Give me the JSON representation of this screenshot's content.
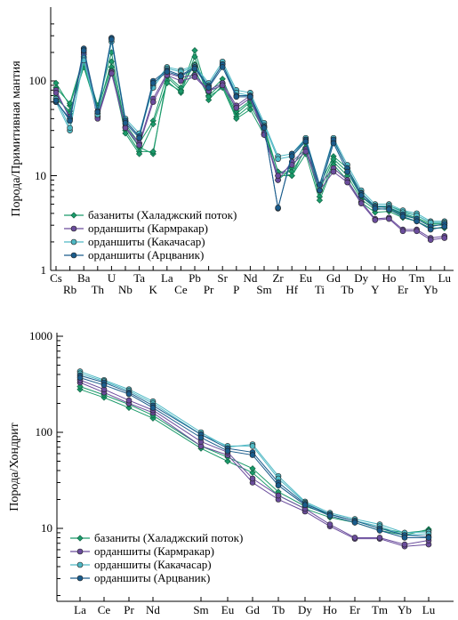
{
  "chart_data": [
    {
      "type": "line",
      "ylabel": "Порода/Примитивная мантия",
      "yscale": "log",
      "ylim": [
        1,
        400
      ],
      "yticks": [
        "1",
        "10",
        "100"
      ],
      "categories": [
        "Cs",
        "Rb",
        "Ba",
        "Th",
        "U",
        "Nb",
        "Ta",
        "K",
        "La",
        "Ce",
        "Pb",
        "Pr",
        "Sr",
        "P",
        "Nd",
        "Sm",
        "Zr",
        "Hf",
        "Eu",
        "Ti",
        "Gd",
        "Tb",
        "Dy",
        "Y",
        "Ho",
        "Er",
        "Tm",
        "Yb",
        "Lu"
      ],
      "legend": [
        "базаниты (Халаджский поток)",
        "орданшиты (Кармракар)",
        "орданшиты (Какачасар)",
        "орданшиты (Арцваник)"
      ],
      "legend_position": "bottom-left",
      "series": [
        {
          "name": "базаниты (Халаджский поток)",
          "color": "#1b9a6a",
          "marker": "diamond",
          "lines": [
            [
              95,
              55,
              165,
              55,
              200,
              32,
              20,
              17,
              110,
              80,
              210,
              70,
              95,
              45,
              60,
              32,
              9,
              12,
              22,
              8,
              16,
              12,
              6,
              4.6,
              4.8,
              4.2,
              3.8,
              3.2,
              3.2
            ],
            [
              65,
              48,
              140,
              48,
              160,
              30,
              18,
              18,
              100,
              75,
              180,
              63,
              90,
              42,
              55,
              30,
              11,
              10,
              20,
              6,
              14,
              10,
              5.6,
              4.4,
              4.5,
              3.8,
              3.5,
              3.0,
              3.0
            ],
            [
              85,
              58,
              180,
              52,
              140,
              35,
              22,
              38,
              115,
              85,
              150,
              75,
              105,
              48,
              62,
              33,
              11,
              11,
              19,
              7,
              15,
              11,
              6,
              4.8,
              4.6,
              4.0,
              3.6,
              3.1,
              3.1
            ],
            [
              70,
              45,
              150,
              45,
              130,
              28,
              17,
              35,
              95,
              78,
              130,
              68,
              85,
              40,
              50,
              27,
              10,
              10,
              17,
              5.5,
              13,
              9,
              5.2,
              4.1,
              4.2,
              3.6,
              3.3,
              2.8,
              2.8
            ]
          ]
        },
        {
          "name": "орданшиты (Кармракар)",
          "color": "#6a4c9c",
          "marker": "circle",
          "lines": [
            [
              80,
              40,
              200,
              42,
              125,
              33,
              22,
              65,
              120,
              110,
              115,
              80,
              95,
              55,
              70,
              28,
              9,
              14,
              19,
              8,
              12,
              9,
              5.3,
              3.5,
              3.6,
              2.7,
              2.7,
              2.2,
              2.3
            ],
            [
              75,
              42,
              190,
              40,
              120,
              32,
              21,
              60,
              115,
              100,
              110,
              78,
              90,
              52,
              66,
              27,
              10,
              13,
              18,
              7,
              11,
              8.5,
              5.1,
              3.4,
              3.5,
              2.6,
              2.6,
              2.1,
              2.2
            ]
          ]
        },
        {
          "name": "орданшиты (Какачасар)",
          "color": "#4fb8c4",
          "marker": "circle",
          "lines": [
            [
              60,
              30,
              175,
              45,
              280,
              40,
              28,
              90,
              140,
              130,
              145,
              95,
              160,
              80,
              75,
              36,
              16,
              17,
              25,
              8,
              25,
              13,
              7,
              5,
              5,
              4.3,
              4,
              3.3,
              3.3
            ],
            [
              65,
              32,
              165,
              44,
              260,
              38,
              26,
              85,
              135,
              125,
              140,
              90,
              150,
              75,
              70,
              34,
              15,
              16,
              24,
              7,
              23,
              12,
              6.6,
              4.8,
              4.8,
              4.1,
              3.8,
              3.2,
              3.2
            ]
          ]
        },
        {
          "name": "орданшиты (Арцваник)",
          "color": "#1a5c8c",
          "marker": "circle",
          "lines": [
            [
              60,
              40,
              220,
              48,
              285,
              38,
              26,
              100,
              130,
              115,
              140,
              88,
              150,
              70,
              70,
              33,
              4.5,
              17,
              24,
              8,
              24,
              12,
              6.5,
              4.7,
              4.6,
              3.9,
              3.5,
              2.9,
              3.1
            ],
            [
              62,
              38,
              210,
              47,
              275,
              36,
              25,
              95,
              125,
              112,
              135,
              85,
              140,
              68,
              68,
              32,
              4.6,
              16,
              23,
              7,
              22,
              11,
              6.2,
              4.5,
              4.4,
              3.7,
              3.3,
              2.7,
              2.9
            ]
          ]
        }
      ]
    },
    {
      "type": "line",
      "ylabel": "Порода/Хондрит",
      "yscale": "log",
      "ylim": [
        2,
        1000
      ],
      "yticks": [
        "10",
        "100",
        "1000"
      ],
      "categories": [
        "La",
        "Ce",
        "Pr",
        "Nd",
        "Sm",
        "Eu",
        "Gd",
        "Tb",
        "Dy",
        "Ho",
        "Er",
        "Tm",
        "Yb",
        "Lu"
      ],
      "legend": [
        "базаниты (Халаджский поток)",
        "орданшиты (Кармракар)",
        "орданшиты (Какачасар)",
        "орданшиты (Арцваник)"
      ],
      "legend_position": "bottom-left",
      "series": [
        {
          "name": "базаниты (Халаджский поток)",
          "color": "#1b9a6a",
          "marker": "diamond",
          "lines": [
            [
              280,
              230,
              180,
              140,
              68,
              50,
              38,
              22,
              16,
              13,
              11.5,
              9.5,
              8.5,
              9.8
            ],
            [
              300,
              245,
              195,
              150,
              72,
              55,
              42,
              24,
              17,
              14,
              12,
              10,
              9,
              9.5
            ]
          ]
        },
        {
          "name": "орданшиты (Кармракар)",
          "color": "#6a4c9c",
          "marker": "circle",
          "lines": [
            [
              330,
              260,
              200,
              160,
              72,
              58,
              30,
              20,
              15,
              10.5,
              7.8,
              7.8,
              6.5,
              6.8
            ],
            [
              350,
              280,
              215,
              170,
              80,
              62,
              33,
              22,
              16,
              11,
              8,
              8,
              6.8,
              7.5
            ]
          ]
        },
        {
          "name": "орданшиты (Какачасар)",
          "color": "#4fb8c4",
          "marker": "circle",
          "lines": [
            [
              430,
              350,
              280,
              210,
              100,
              70,
              75,
              35,
              19,
              14.5,
              12.5,
              11,
              9,
              9.2
            ],
            [
              410,
              340,
              270,
              200,
              95,
              72,
              72,
              33,
              18.5,
              14,
              12,
              10.5,
              8.5,
              8.8
            ]
          ]
        },
        {
          "name": "орданшиты (Арцваник)",
          "color": "#1a5c8c",
          "marker": "circle",
          "lines": [
            [
              390,
              330,
              260,
              190,
              95,
              68,
              62,
              30,
              18,
              14,
              12,
              10,
              8.5,
              8.2
            ],
            [
              370,
              310,
              250,
              180,
              88,
              64,
              58,
              28,
              17.5,
              13.5,
              11.5,
              9.5,
              8,
              8
            ]
          ]
        }
      ]
    }
  ]
}
